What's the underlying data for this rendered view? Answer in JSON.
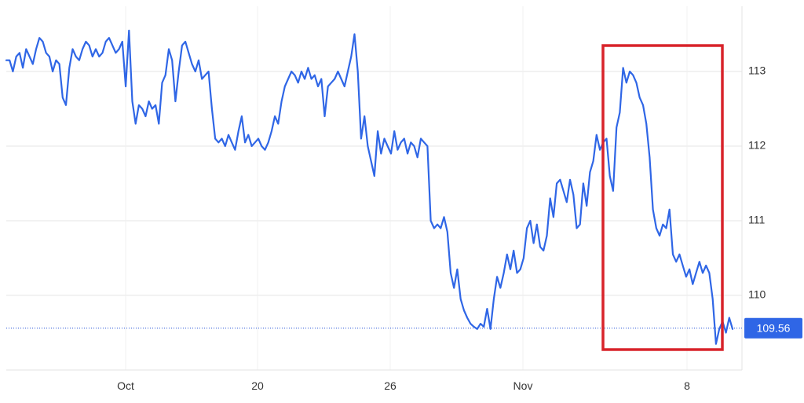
{
  "chart_data": {
    "type": "line",
    "x_tick_labels": [
      "Oct",
      "20",
      "26",
      "Nov",
      "8"
    ],
    "y_tick_labels": [
      "113",
      "112",
      "111",
      "110"
    ],
    "y_ticks": [
      113,
      112,
      111,
      110
    ],
    "ylim": [
      109.0,
      114.0
    ],
    "grid": true,
    "last_value": 109.56,
    "last_value_label": "109.56",
    "series": [
      {
        "values": [
          113.15,
          113.15,
          113.0,
          113.2,
          113.25,
          113.05,
          113.3,
          113.2,
          113.1,
          113.3,
          113.45,
          113.4,
          113.25,
          113.2,
          113.0,
          113.15,
          113.1,
          112.65,
          112.55,
          113.05,
          113.3,
          113.2,
          113.15,
          113.3,
          113.4,
          113.35,
          113.2,
          113.3,
          113.2,
          113.25,
          113.4,
          113.45,
          113.35,
          113.25,
          113.3,
          113.4,
          112.8,
          113.55,
          112.6,
          112.3,
          112.55,
          112.5,
          112.4,
          112.6,
          112.5,
          112.55,
          112.3,
          112.85,
          112.95,
          113.3,
          113.15,
          112.6,
          113.0,
          113.35,
          113.4,
          113.25,
          113.1,
          113.0,
          113.15,
          112.9,
          112.95,
          113.0,
          112.5,
          112.1,
          112.05,
          112.1,
          112.0,
          112.15,
          112.05,
          111.95,
          112.2,
          112.4,
          112.05,
          112.15,
          112.0,
          112.05,
          112.1,
          112.0,
          111.95,
          112.05,
          112.2,
          112.4,
          112.3,
          112.6,
          112.8,
          112.9,
          113.0,
          112.95,
          112.85,
          113.0,
          112.9,
          113.05,
          112.9,
          112.95,
          112.8,
          112.9,
          112.4,
          112.8,
          112.85,
          112.9,
          113.0,
          112.9,
          112.8,
          113.0,
          113.2,
          113.5,
          113.0,
          112.1,
          112.4,
          112.0,
          111.8,
          111.6,
          112.2,
          111.9,
          112.1,
          112.0,
          111.9,
          112.2,
          111.95,
          112.05,
          112.1,
          111.9,
          112.05,
          112.0,
          111.85,
          112.1,
          112.05,
          112.0,
          111.0,
          110.9,
          110.95,
          110.9,
          111.05,
          110.85,
          110.3,
          110.1,
          110.35,
          109.95,
          109.8,
          109.7,
          109.62,
          109.58,
          109.55,
          109.62,
          109.58,
          109.82,
          109.55,
          109.95,
          110.25,
          110.1,
          110.3,
          110.55,
          110.35,
          110.6,
          110.3,
          110.35,
          110.5,
          110.9,
          111.0,
          110.7,
          110.95,
          110.65,
          110.6,
          110.8,
          111.3,
          111.05,
          111.5,
          111.55,
          111.4,
          111.25,
          111.55,
          111.35,
          110.9,
          110.95,
          111.5,
          111.2,
          111.65,
          111.8,
          112.15,
          111.95,
          112.05,
          112.1,
          111.6,
          111.4,
          112.25,
          112.45,
          113.05,
          112.85,
          113.0,
          112.95,
          112.85,
          112.65,
          112.55,
          112.3,
          111.85,
          111.15,
          110.9,
          110.8,
          110.95,
          110.9,
          111.15,
          110.55,
          110.45,
          110.55,
          110.4,
          110.25,
          110.35,
          110.15,
          110.3,
          110.45,
          110.3,
          110.4,
          110.3,
          109.95,
          109.35,
          109.55,
          109.65,
          109.5,
          109.7,
          109.55
        ]
      }
    ]
  }
}
